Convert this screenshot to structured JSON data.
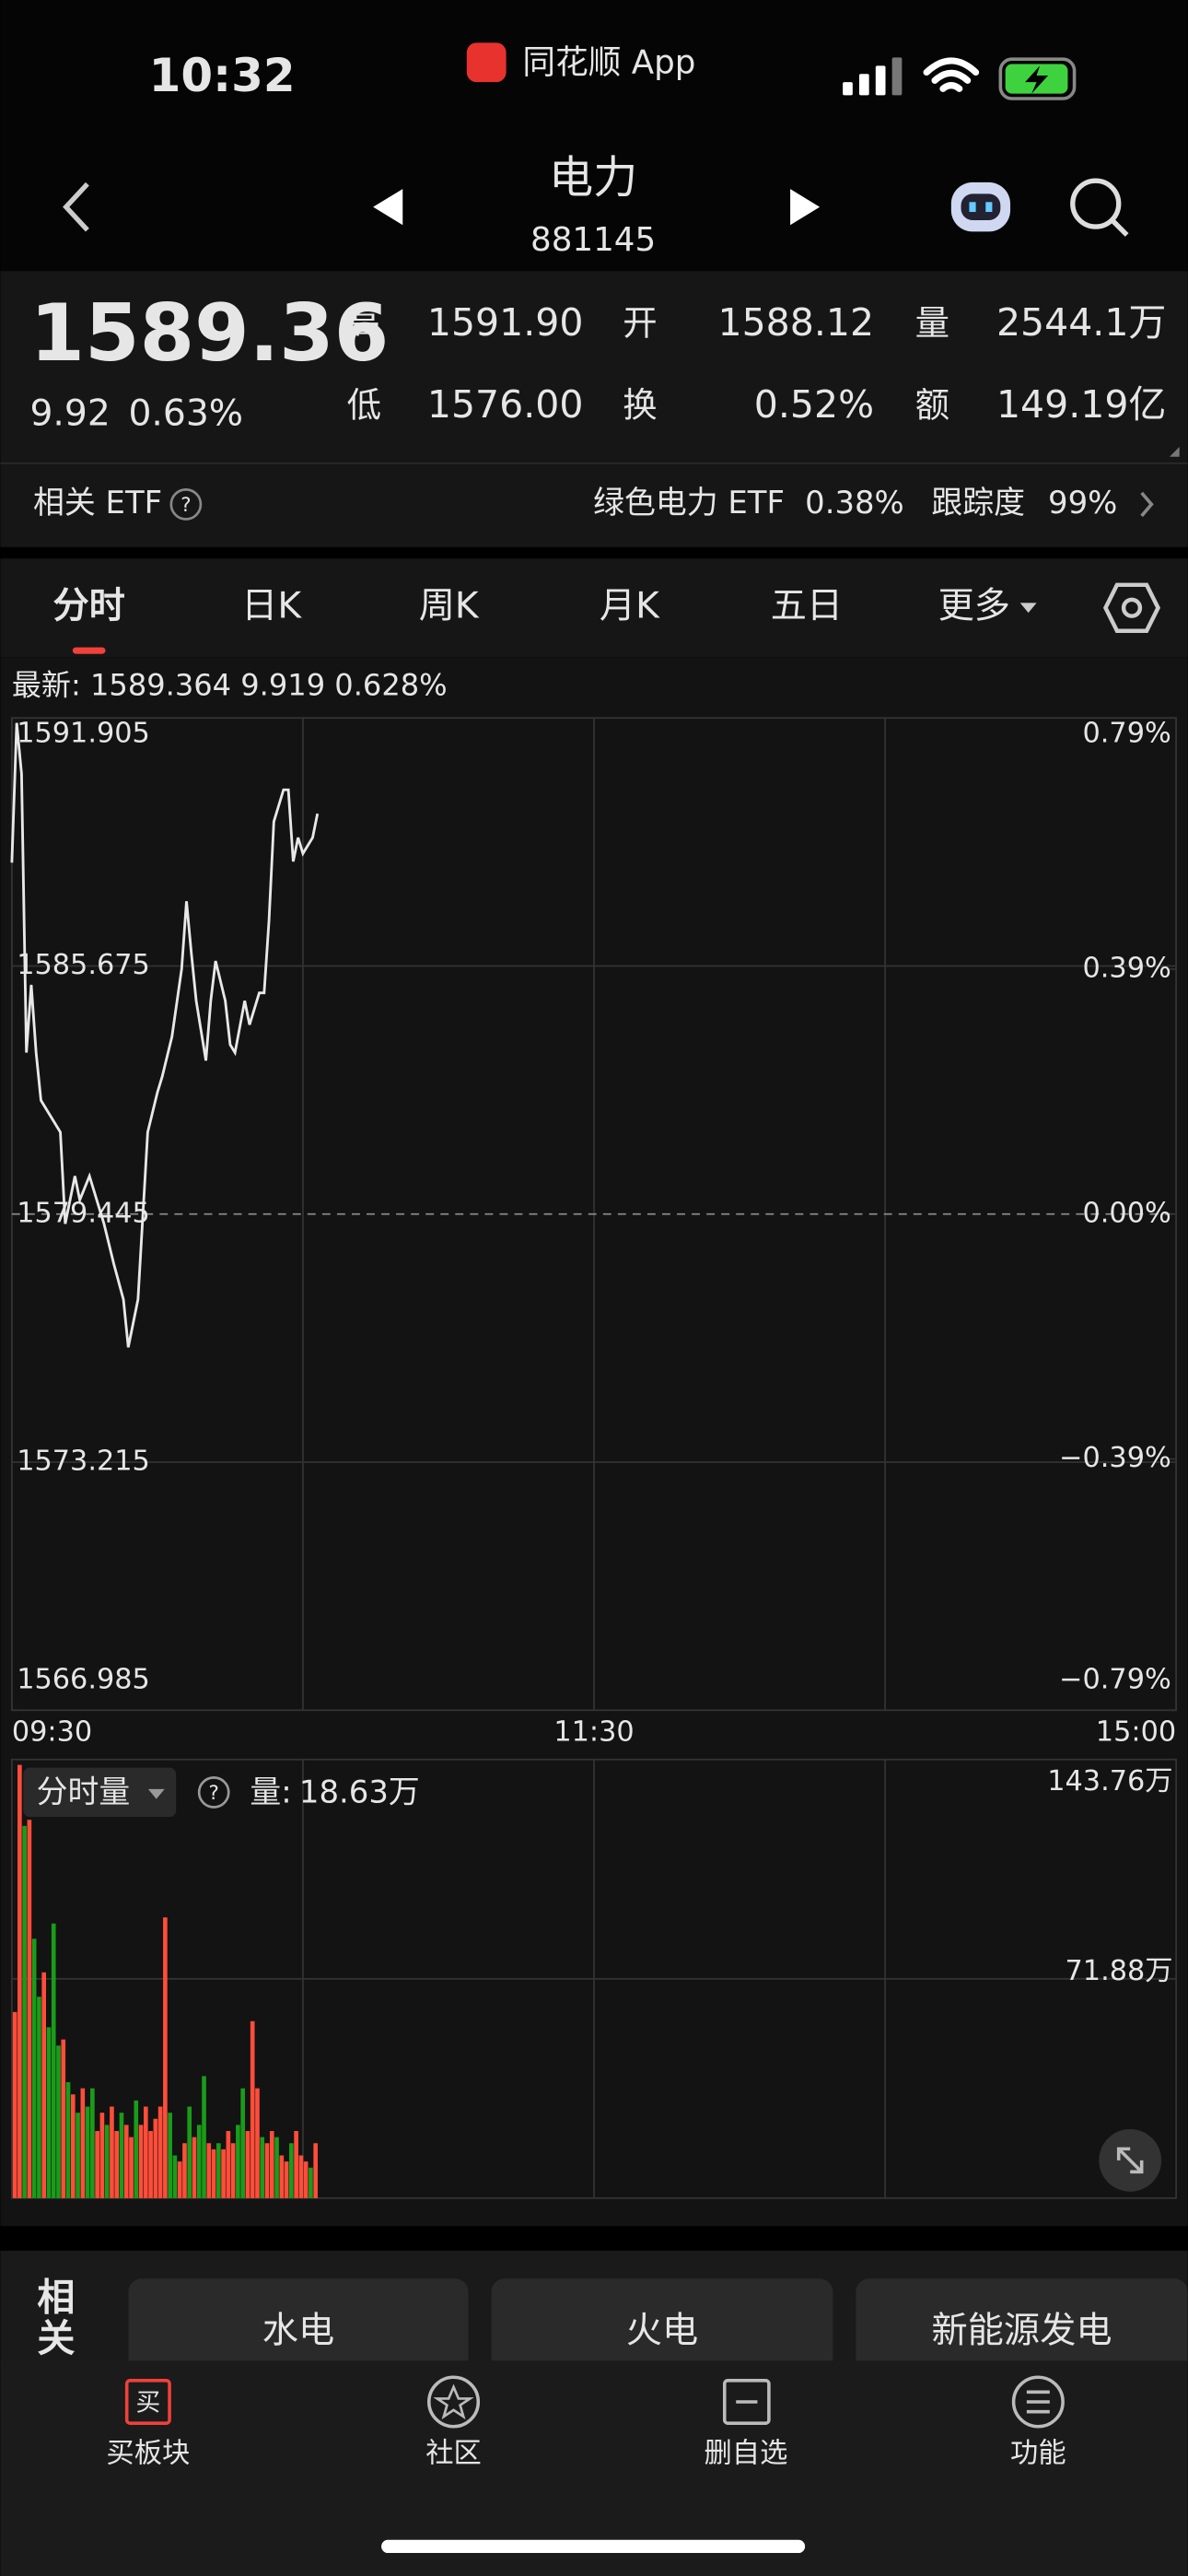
{
  "status_bar": {
    "time": "10:32",
    "app": "同花顺 App"
  },
  "header": {
    "title": "电力",
    "code": "881145"
  },
  "quote": {
    "price": "1589.36",
    "change": "9.92",
    "change_pct": "0.63%",
    "fields": [
      {
        "label": "高",
        "value": "1591.90",
        "color": "#f0413a"
      },
      {
        "label": "开",
        "value": "1588.12",
        "color": "#f0413a"
      },
      {
        "label": "量",
        "value": "2544.1万",
        "color": "#e6e6e6"
      },
      {
        "label": "低",
        "value": "1576.00",
        "color": "#35b935"
      },
      {
        "label": "换",
        "value": "0.52%",
        "color": "#e6e6e6"
      },
      {
        "label": "额",
        "value": "149.19亿",
        "color": "#e6e6e6"
      }
    ]
  },
  "etf": {
    "label": "相关 ETF",
    "name": "绿色电力 ETF",
    "change": "0.38%",
    "tracking_label": "跟踪度",
    "tracking": "99%"
  },
  "tabs": [
    "分时",
    "日K",
    "周K",
    "月K",
    "五日",
    "更多"
  ],
  "chart_data": [
    {
      "type": "line",
      "subtitle": "最新: 1589.364  9.919  0.628%",
      "color": "#e8e8e8",
      "grid": true,
      "xlim": [
        0,
        240
      ],
      "xticks": [
        {
          "value": 0,
          "label": "09:30"
        },
        {
          "value": 120,
          "label": "11:30"
        },
        {
          "value": 240,
          "label": "15:00"
        }
      ],
      "ylim": [
        1566.985,
        1591.905
      ],
      "yticks": [
        1566.985,
        1573.215,
        1579.445,
        1585.675,
        1591.905
      ],
      "y2lim": [
        -0.79,
        0.79
      ],
      "y2ticks": [
        {
          "value": -0.79,
          "label": "−0.79%"
        },
        {
          "value": -0.39,
          "label": "−0.39%"
        },
        {
          "value": 0,
          "label": "0.00%"
        },
        {
          "value": 0.39,
          "label": "0.39%"
        },
        {
          "value": 0.79,
          "label": "0.79%"
        }
      ],
      "x": [
        0,
        1,
        2,
        3,
        4,
        5,
        6,
        8,
        10,
        11,
        13,
        14,
        16,
        18,
        19,
        21,
        23,
        24,
        26,
        27,
        28,
        30,
        31,
        33,
        35,
        36,
        37,
        38,
        40,
        41,
        42,
        44,
        45,
        46,
        48,
        49,
        51,
        52,
        53,
        54,
        56,
        57,
        58,
        59,
        60,
        62,
        63
      ],
      "values": [
        1588.27,
        1591.78,
        1590.5,
        1583.5,
        1585.2,
        1583.5,
        1582.3,
        1581.9,
        1581.5,
        1579.2,
        1580.4,
        1579.8,
        1580.4,
        1579.6,
        1579.2,
        1578.2,
        1577.3,
        1576.1,
        1577.3,
        1579.4,
        1581.5,
        1582.5,
        1582.9,
        1583.9,
        1585.6,
        1587.3,
        1586.0,
        1584.8,
        1583.3,
        1584.8,
        1585.8,
        1584.8,
        1583.7,
        1583.5,
        1584.8,
        1584.2,
        1585.0,
        1585.0,
        1586.8,
        1589.3,
        1590.1,
        1590.1,
        1588.3,
        1588.9,
        1588.5,
        1588.9,
        1589.5
      ]
    },
    {
      "type": "bar",
      "selector": "分时量",
      "volume_label": "量:",
      "volume": "18.63万",
      "xlim": [
        0,
        240
      ],
      "ylim": [
        0,
        143.76
      ],
      "yticks": [
        {
          "value": 71.88,
          "label": "71.88万"
        },
        {
          "value": 143.76,
          "label": "143.76万"
        }
      ],
      "x": [
        0,
        1,
        2,
        3,
        4,
        5,
        6,
        7,
        8,
        9,
        10,
        11,
        12,
        13,
        14,
        15,
        16,
        17,
        18,
        19,
        20,
        21,
        22,
        23,
        24,
        25,
        26,
        27,
        28,
        29,
        30,
        31,
        32,
        33,
        34,
        35,
        36,
        37,
        38,
        39,
        40,
        41,
        42,
        43,
        44,
        45,
        46,
        47,
        48,
        49,
        50,
        51,
        52,
        53,
        54,
        55,
        56,
        57,
        58,
        59,
        60,
        61,
        62
      ],
      "values": [
        61,
        142,
        122,
        124,
        85,
        66,
        74,
        56,
        90,
        50,
        52,
        38,
        34,
        28,
        36,
        30,
        36,
        22,
        28,
        24,
        30,
        22,
        28,
        24,
        20,
        32,
        24,
        30,
        22,
        26,
        30,
        92,
        28,
        14,
        12,
        18,
        30,
        20,
        24,
        40,
        18,
        16,
        18,
        16,
        22,
        18,
        24,
        36,
        22,
        58,
        36,
        20,
        18,
        22,
        20,
        14,
        12,
        18,
        22,
        14,
        12,
        10,
        18
      ],
      "colors": [
        "#ff4d3a",
        "#ff4d3a",
        "#1a9c1a",
        "#ff4d3a",
        "#1a9c1a",
        "#1a9c1a",
        "#ff4d3a",
        "#1a9c1a",
        "#1a9c1a",
        "#1a9c1a",
        "#ff4d3a",
        "#1a9c1a",
        "#ff4d3a",
        "#1a9c1a",
        "#ff4d3a",
        "#1a9c1a",
        "#1a9c1a",
        "#ff4d3a",
        "#ff4d3a",
        "#1a9c1a",
        "#ff4d3a",
        "#ff4d3a",
        "#1a9c1a",
        "#ff4d3a",
        "#ff4d3a",
        "#1a9c1a",
        "#ff4d3a",
        "#ff4d3a",
        "#ff4d3a",
        "#ff4d3a",
        "#ff4d3a",
        "#ff4d3a",
        "#1a9c1a",
        "#1a9c1a",
        "#ff4d3a",
        "#ff4d3a",
        "#1a9c1a",
        "#ff4d3a",
        "#1a9c1a",
        "#1a9c1a",
        "#ff4d3a",
        "#ff4d3a",
        "#1a9c1a",
        "#ff4d3a",
        "#ff4d3a",
        "#ff4d3a",
        "#1a9c1a",
        "#1a9c1a",
        "#ff4d3a",
        "#ff4d3a",
        "#ff4d3a",
        "#1a9c1a",
        "#ff4d3a",
        "#ff4d3a",
        "#1a9c1a",
        "#ff4d3a",
        "#ff4d3a",
        "#1a9c1a",
        "#ff4d3a",
        "#ff4d3a",
        "#ff4d3a",
        "#1a9c1a",
        "#ff4d3a"
      ]
    }
  ],
  "related": {
    "label": "相关",
    "items": [
      "水电",
      "火电",
      "新能源发电"
    ]
  },
  "bottom_nav": [
    "买板块",
    "社区",
    "删自选",
    "功能"
  ]
}
